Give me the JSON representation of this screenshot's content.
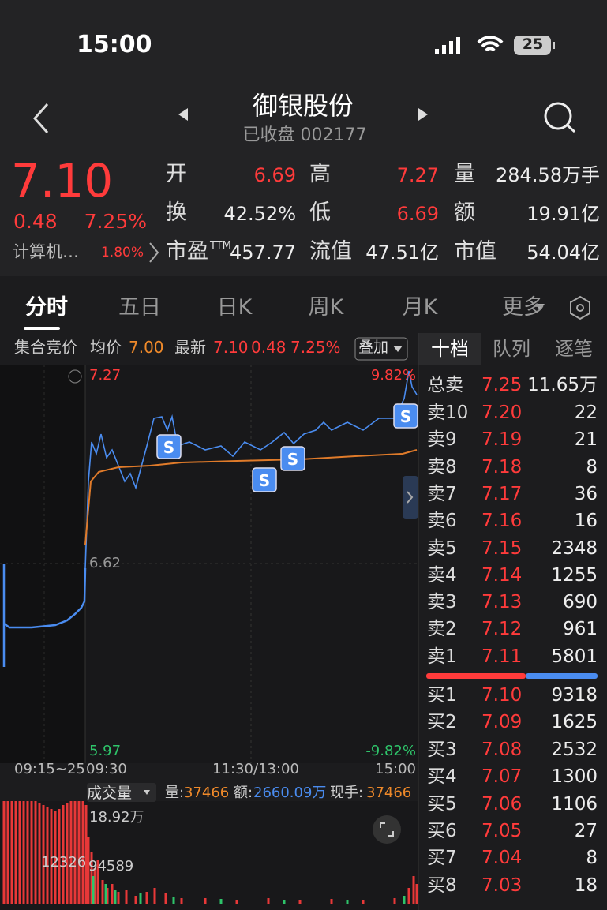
{
  "status_bar": {
    "time": "15:00",
    "battery": "25"
  },
  "header": {
    "title": "御银股份",
    "subtitle": "已收盘 002177"
  },
  "quote": {
    "price": "7.10",
    "change": "0.48",
    "change_pct": "7.25%",
    "sector": "计算机…",
    "sector_pct": "1.80%"
  },
  "stats": [
    [
      {
        "label": "开",
        "value": "6.69"
      },
      {
        "label": "高",
        "value": "7.27"
      },
      {
        "label": "量",
        "value": "284.58万手"
      }
    ],
    [
      {
        "label": "换",
        "value": "42.52%"
      },
      {
        "label": "低",
        "value": "6.69"
      },
      {
        "label": "额",
        "value": "19.91亿"
      }
    ],
    [
      {
        "label": "市盈",
        "sup": "TTM",
        "value": "457.77"
      },
      {
        "label": "流值",
        "value": "47.51亿"
      },
      {
        "label": "市值",
        "value": "54.04亿"
      }
    ]
  ],
  "tabs": [
    "分时",
    "五日",
    "日K",
    "周K",
    "月K",
    "更多"
  ],
  "chart_info": {
    "auction": "集合竞价",
    "avg_label": "均价",
    "avg": "7.00",
    "latest_label": "最新",
    "latest": "7.10",
    "change": "0.48",
    "change_pct": "7.25%",
    "overlay": "叠加"
  },
  "price_axis": {
    "high": "7.27",
    "high_pct": "9.82%",
    "mid": "6.62",
    "low": "5.97",
    "low_pct": "-9.82%"
  },
  "time_axis": [
    "09:15~25",
    "09:30",
    "11:30/13:00",
    "15:00"
  ],
  "volume": {
    "label": "成交量",
    "vol_label": "量:",
    "vol": "37466",
    "amt_label": "额:",
    "amt": "2660.09万",
    "hand_label": "现手:",
    "hand": "37466",
    "max": "18.92万",
    "pre": "12326",
    "open": "94589"
  },
  "order_book": {
    "tabs": [
      "十档",
      "队列",
      "逐笔"
    ],
    "total_sell": {
      "label": "总卖",
      "price": "7.25",
      "volume": "11.65万"
    },
    "sell": [
      {
        "label": "卖10",
        "price": "7.20",
        "volume": "22"
      },
      {
        "label": "卖9",
        "price": "7.19",
        "volume": "21"
      },
      {
        "label": "卖8",
        "price": "7.18",
        "volume": "8"
      },
      {
        "label": "卖7",
        "price": "7.17",
        "volume": "36"
      },
      {
        "label": "卖6",
        "price": "7.16",
        "volume": "16"
      },
      {
        "label": "卖5",
        "price": "7.15",
        "volume": "2348"
      },
      {
        "label": "卖4",
        "price": "7.14",
        "volume": "1255"
      },
      {
        "label": "卖3",
        "price": "7.13",
        "volume": "690"
      },
      {
        "label": "卖2",
        "price": "7.12",
        "volume": "961"
      },
      {
        "label": "卖1",
        "price": "7.11",
        "volume": "5801"
      }
    ],
    "buy": [
      {
        "label": "买1",
        "price": "7.10",
        "volume": "9318"
      },
      {
        "label": "买2",
        "price": "7.09",
        "volume": "1625"
      },
      {
        "label": "买3",
        "price": "7.08",
        "volume": "2532"
      },
      {
        "label": "买4",
        "price": "7.07",
        "volume": "1300"
      },
      {
        "label": "买5",
        "price": "7.06",
        "volume": "1106"
      },
      {
        "label": "买6",
        "price": "7.05",
        "volume": "27"
      },
      {
        "label": "买7",
        "price": "7.04",
        "volume": "8"
      },
      {
        "label": "买8",
        "price": "7.03",
        "volume": "18"
      }
    ]
  }
}
